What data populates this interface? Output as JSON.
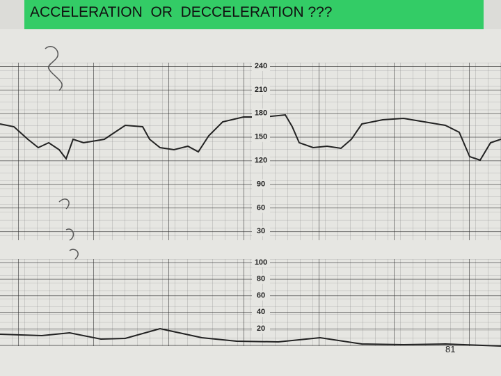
{
  "slide": {
    "title": "ACCELERATION  OR  DECCELERATION ???",
    "page_number": "81"
  },
  "strip": {
    "fhr_scale": [
      240,
      210,
      180,
      150,
      120,
      90,
      60,
      30
    ],
    "ua_scale": [
      100,
      80,
      60,
      40,
      20
    ]
  }
}
